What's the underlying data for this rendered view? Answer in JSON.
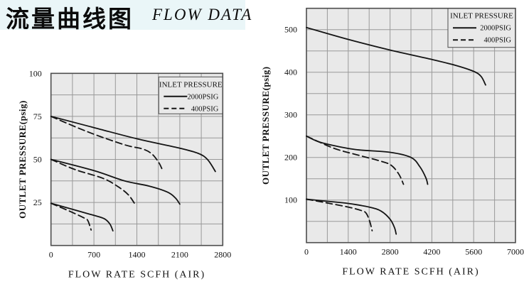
{
  "banner": {
    "title_cn": "流量曲线图",
    "title_en": "FLOW DATA"
  },
  "colors": {
    "banner_bg": "#eaf6f8",
    "plot_bg": "#e9e9e9",
    "grid": "#999999",
    "border": "#4d4d4d",
    "curve": "#141414",
    "text": "#111111"
  },
  "chart_data": [
    {
      "type": "line",
      "title": "",
      "xlabel": "FLOW RATE SCFH (AIR)",
      "ylabel": "OUTLET PRESSURE(psig)",
      "xlim": [
        0,
        2800
      ],
      "ylim": [
        0,
        100
      ],
      "x_ticks": [
        0,
        700,
        1400,
        2100,
        2800
      ],
      "y_ticks": [
        25,
        50,
        75,
        100
      ],
      "x_grid_step": 350,
      "y_grid_step": 12.5,
      "grid": true,
      "legend": {
        "title": "INLET PRESSURE",
        "position": "top-right",
        "entries": [
          {
            "label": "2000PSIG",
            "style": "solid"
          },
          {
            "label": "400PSIG",
            "style": "dashed"
          }
        ]
      },
      "series": [
        {
          "name": "2000psig-inlet-75-set",
          "style": "solid",
          "points": [
            [
              0,
              75
            ],
            [
              700,
              68.5
            ],
            [
              1400,
              62
            ],
            [
              2100,
              56.5
            ],
            [
              2400,
              53.5
            ],
            [
              2550,
              50
            ],
            [
              2680,
              43
            ]
          ]
        },
        {
          "name": "400psig-inlet-75-set",
          "style": "dashed",
          "points": [
            [
              0,
              75
            ],
            [
              600,
              66
            ],
            [
              1200,
              58.5
            ],
            [
              1500,
              56
            ],
            [
              1650,
              53
            ],
            [
              1760,
              48
            ],
            [
              1815,
              44
            ]
          ]
        },
        {
          "name": "2000psig-inlet-50-set",
          "style": "solid",
          "points": [
            [
              0,
              50
            ],
            [
              700,
              43.5
            ],
            [
              1200,
              37.5
            ],
            [
              1600,
              34.5
            ],
            [
              1900,
              31
            ],
            [
              2030,
              27.5
            ],
            [
              2100,
              24
            ]
          ]
        },
        {
          "name": "400psig-inlet-50-set",
          "style": "dashed",
          "points": [
            [
              0,
              50
            ],
            [
              400,
              44
            ],
            [
              850,
              39
            ],
            [
              1100,
              34
            ],
            [
              1260,
              29.5
            ],
            [
              1370,
              24
            ]
          ]
        },
        {
          "name": "2000psig-inlet-25-set",
          "style": "solid",
          "points": [
            [
              0,
              24.5
            ],
            [
              350,
              21
            ],
            [
              700,
              17.5
            ],
            [
              870,
              15.5
            ],
            [
              960,
              12.5
            ],
            [
              1010,
              8.5
            ]
          ]
        },
        {
          "name": "400psig-inlet-25-set",
          "style": "dashed",
          "points": [
            [
              0,
              24.5
            ],
            [
              330,
              19.5
            ],
            [
              540,
              16
            ],
            [
              600,
              14.5
            ],
            [
              655,
              9
            ]
          ]
        }
      ]
    },
    {
      "type": "line",
      "title": "",
      "xlabel": "FLOW RATE SCFH (AIR)",
      "ylabel": "OUTLET PRESSURE(psig)",
      "xlim": [
        0,
        7000
      ],
      "ylim": [
        0,
        550
      ],
      "x_ticks": [
        0,
        1400,
        2800,
        4200,
        5600,
        7000
      ],
      "y_ticks": [
        100,
        200,
        300,
        400,
        500
      ],
      "x_grid_step": 700,
      "y_grid_step": 50,
      "grid": true,
      "legend": {
        "title": "INLET PRESSURE",
        "position": "top-right",
        "entries": [
          {
            "label": "2000PSIG",
            "style": "solid"
          },
          {
            "label": "400PSIG",
            "style": "dashed"
          }
        ]
      },
      "series": [
        {
          "name": "2000psig-inlet-500-set",
          "style": "solid",
          "points": [
            [
              0,
              505
            ],
            [
              1400,
              477
            ],
            [
              2800,
              452
            ],
            [
              4200,
              430
            ],
            [
              5000,
              416
            ],
            [
              5600,
              402
            ],
            [
              5850,
              390
            ],
            [
              6000,
              370
            ]
          ]
        },
        {
          "name": "2000psig-inlet-250-set",
          "style": "solid",
          "points": [
            [
              0,
              250
            ],
            [
              400,
              237
            ],
            [
              900,
              228
            ],
            [
              1700,
              218
            ],
            [
              2800,
              212
            ],
            [
              3500,
              200
            ],
            [
              3800,
              178
            ],
            [
              4000,
              152
            ],
            [
              4060,
              137
            ]
          ]
        },
        {
          "name": "400psig-inlet-250-set",
          "style": "dashed",
          "points": [
            [
              0,
              250
            ],
            [
              900,
              222
            ],
            [
              1700,
              206
            ],
            [
              2500,
              191
            ],
            [
              2850,
              181
            ],
            [
              3100,
              160
            ],
            [
              3250,
              137
            ]
          ]
        },
        {
          "name": "2000psig-inlet-100-set",
          "style": "solid",
          "points": [
            [
              0,
              102
            ],
            [
              700,
              97
            ],
            [
              1400,
              92
            ],
            [
              2100,
              83.5
            ],
            [
              2500,
              74
            ],
            [
              2800,
              55
            ],
            [
              2950,
              35
            ],
            [
              3005,
              20
            ]
          ]
        },
        {
          "name": "400psig-inlet-100-set",
          "style": "dashed",
          "points": [
            [
              0,
              102
            ],
            [
              700,
              93
            ],
            [
              1400,
              83.5
            ],
            [
              1850,
              75
            ],
            [
              2000,
              69
            ],
            [
              2120,
              50
            ],
            [
              2200,
              28
            ]
          ]
        }
      ]
    }
  ]
}
